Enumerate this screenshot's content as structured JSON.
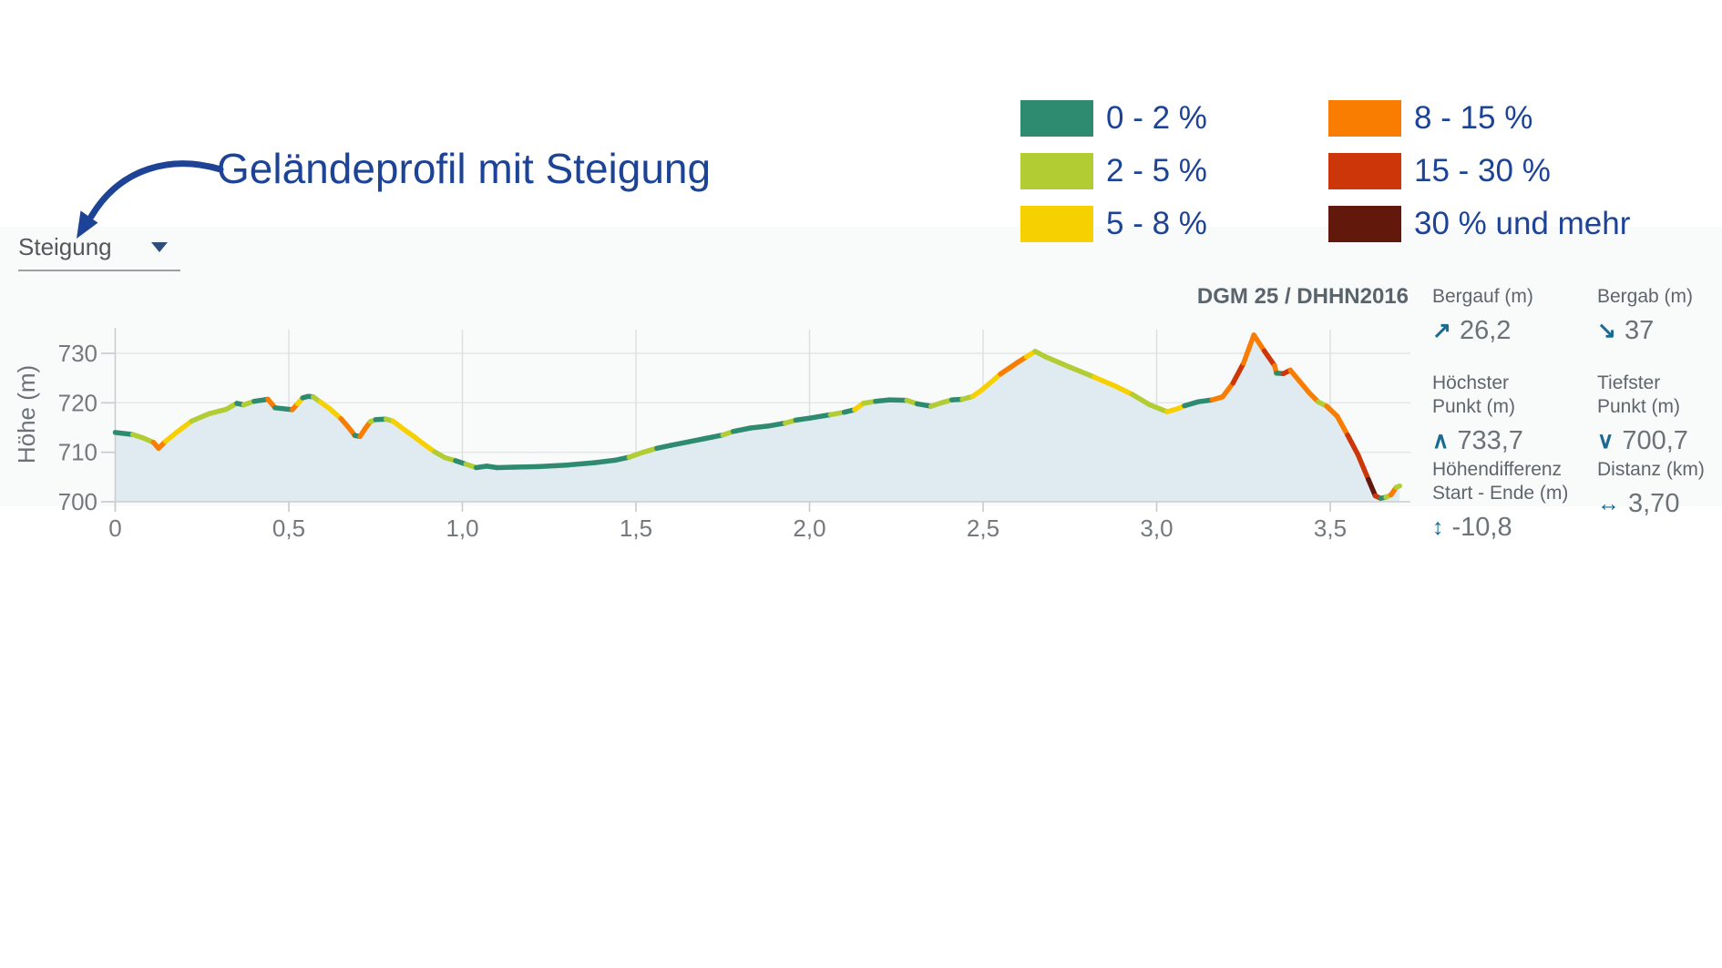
{
  "annotation": {
    "title": "Geländeprofil mit Steigung",
    "color": "#1C4396"
  },
  "controls": {
    "profile_type": {
      "value": "Steigung"
    }
  },
  "legend": {
    "items": [
      {
        "label": "0 - 2 %",
        "color": "#2E8B6F"
      },
      {
        "label": "2 - 5 %",
        "color": "#B2CC34"
      },
      {
        "label": "5 - 8 %",
        "color": "#F7D000"
      },
      {
        "label": "8 - 15 %",
        "color": "#F87D00"
      },
      {
        "label": "15 - 30 %",
        "color": "#CD3608"
      },
      {
        "label": "30 % und mehr",
        "color": "#62190B"
      }
    ]
  },
  "chart": {
    "model_label": "DGM 25 / DHHN2016",
    "ylabel": "Höhe (m)",
    "x_ticks": [
      {
        "v": 0,
        "label": "0"
      },
      {
        "v": 0.5,
        "label": "0,5"
      },
      {
        "v": 1.0,
        "label": "1,0"
      },
      {
        "v": 1.5,
        "label": "1,5"
      },
      {
        "v": 2.0,
        "label": "2,0"
      },
      {
        "v": 2.5,
        "label": "2,5"
      },
      {
        "v": 3.0,
        "label": "3,0"
      },
      {
        "v": 3.5,
        "label": "3,5"
      }
    ],
    "y_ticks": [
      {
        "v": 700,
        "label": "700"
      },
      {
        "v": 710,
        "label": "710"
      },
      {
        "v": 720,
        "label": "720"
      },
      {
        "v": 730,
        "label": "730"
      }
    ]
  },
  "chart_data": {
    "type": "area",
    "title": "Geländeprofil mit Steigung",
    "xlabel": "Distanz (km)",
    "ylabel": "Höhe (m)",
    "x_unit": "km",
    "y_unit": "m",
    "xlim": [
      0,
      3.7
    ],
    "ylim": [
      700,
      733.7
    ],
    "grid": true,
    "fill_color": "#DFEAF1",
    "x": [
      0,
      0.05,
      0.08,
      0.11,
      0.125,
      0.145,
      0.18,
      0.22,
      0.27,
      0.32,
      0.35,
      0.37,
      0.4,
      0.44,
      0.46,
      0.51,
      0.525,
      0.54,
      0.555,
      0.57,
      0.59,
      0.62,
      0.65,
      0.67,
      0.69,
      0.705,
      0.72,
      0.735,
      0.75,
      0.78,
      0.8,
      0.83,
      0.86,
      0.89,
      0.92,
      0.95,
      0.98,
      1.01,
      1.04,
      1.07,
      1.1,
      1.15,
      1.22,
      1.3,
      1.38,
      1.44,
      1.48,
      1.52,
      1.56,
      1.6,
      1.65,
      1.7,
      1.75,
      1.78,
      1.83,
      1.88,
      1.93,
      1.96,
      2.0,
      2.06,
      2.1,
      2.13,
      2.155,
      2.19,
      2.23,
      2.28,
      2.31,
      2.35,
      2.38,
      2.41,
      2.44,
      2.47,
      2.5,
      2.55,
      2.6,
      2.625,
      2.65,
      2.68,
      2.75,
      2.82,
      2.88,
      2.93,
      2.98,
      3.03,
      3.06,
      3.08,
      3.12,
      3.16,
      3.19,
      3.22,
      3.25,
      3.28,
      3.31,
      3.34,
      3.345,
      3.365,
      3.385,
      3.41,
      3.44,
      3.465,
      3.49,
      3.52,
      3.55,
      3.58,
      3.61,
      3.63,
      3.645,
      3.66,
      3.675,
      3.69,
      3.7
    ],
    "elevation": [
      714.0,
      713.6,
      712.9,
      712.0,
      710.8,
      712.2,
      714.2,
      716.3,
      717.8,
      718.7,
      719.9,
      719.6,
      720.3,
      720.7,
      719.0,
      718.6,
      719.8,
      721.0,
      721.3,
      721.2,
      720.2,
      718.7,
      716.8,
      715.2,
      713.4,
      713.2,
      714.8,
      716.2,
      716.6,
      716.7,
      716.3,
      714.7,
      713.2,
      711.6,
      710.1,
      708.9,
      708.3,
      707.6,
      706.9,
      707.2,
      706.9,
      707.0,
      707.1,
      707.4,
      707.9,
      708.4,
      709.0,
      710.0,
      710.8,
      711.4,
      712.1,
      712.8,
      713.5,
      714.2,
      714.9,
      715.3,
      715.9,
      716.5,
      716.9,
      717.6,
      718.1,
      718.6,
      719.9,
      720.3,
      720.6,
      720.5,
      719.8,
      719.3,
      720.0,
      720.6,
      720.7,
      721.3,
      722.8,
      725.8,
      728.2,
      729.3,
      730.4,
      729.3,
      727.2,
      725.2,
      723.4,
      721.7,
      719.6,
      718.2,
      718.8,
      719.4,
      720.2,
      720.6,
      721.2,
      724.0,
      728.0,
      733.7,
      730.5,
      727.5,
      726.0,
      725.9,
      726.6,
      724.5,
      722.0,
      720.2,
      719.3,
      717.3,
      713.5,
      709.5,
      704.5,
      701.2,
      700.7,
      700.9,
      701.4,
      702.9,
      703.2
    ],
    "slope_class": [
      "0-2",
      "2-5",
      "2-5",
      "8-15",
      "8-15",
      "5-8",
      "5-8",
      "2-5",
      "2-5",
      "2-5",
      "0-2",
      "2-5",
      "0-2",
      "8-15",
      "0-2",
      "8-15",
      "5-8",
      "0-2",
      "0-2",
      "2-5",
      "5-8",
      "5-8",
      "8-15",
      "8-15",
      "0-2",
      "8-15",
      "8-15",
      "2-5",
      "0-2",
      "2-5",
      "5-8",
      "5-8",
      "5-8",
      "5-8",
      "2-5",
      "2-5",
      "0-2",
      "2-5",
      "0-2",
      "0-2",
      "0-2",
      "0-2",
      "0-2",
      "0-2",
      "0-2",
      "0-2",
      "2-5",
      "2-5",
      "0-2",
      "0-2",
      "0-2",
      "0-2",
      "2-5",
      "0-2",
      "0-2",
      "0-2",
      "2-5",
      "0-2",
      "0-2",
      "2-5",
      "0-2",
      "5-8",
      "2-5",
      "0-2",
      "0-2",
      "2-5",
      "0-2",
      "2-5",
      "2-5",
      "0-2",
      "2-5",
      "5-8",
      "5-8",
      "8-15",
      "8-15",
      "5-8",
      "2-5",
      "2-5",
      "2-5",
      "5-8",
      "5-8",
      "2-5",
      "2-5",
      "5-8",
      "5-8",
      "0-2",
      "0-2",
      "8-15",
      "8-15",
      "15-30",
      "8-15",
      "8-15",
      "15-30",
      "8-15",
      "0-2",
      "15-30",
      "8-15",
      "8-15",
      "8-15",
      "2-5",
      "8-15",
      "8-15",
      "15-30",
      "15-30",
      "30+",
      "15-30",
      "0-2",
      "2-5",
      "8-15",
      "2-5"
    ],
    "class_colors": {
      "0-2": "#2E8B6F",
      "2-5": "#B2CC34",
      "5-8": "#F7D000",
      "8-15": "#F87D00",
      "15-30": "#CD3608",
      "30+": "#62190B"
    }
  },
  "stats": {
    "bergauf": {
      "label": "Bergauf (m)",
      "label2": "",
      "glyph": "↗",
      "value": "26,2"
    },
    "bergab": {
      "label": "Bergab (m)",
      "label2": "",
      "glyph": "↘",
      "value": "37"
    },
    "hoechster": {
      "label": "Höchster",
      "label2": "Punkt (m)",
      "glyph": "∧",
      "value": "733,7"
    },
    "tiefster": {
      "label": "Tiefster",
      "label2": "Punkt (m)",
      "glyph": "∨",
      "value": "700,7"
    },
    "hoehendifferenz": {
      "label": "Höhendifferenz",
      "label2": "Start - Ende (m)",
      "glyph": "↕",
      "value": "-10,8"
    },
    "distanz": {
      "label": "Distanz (km)",
      "label2": "",
      "glyph": "↔",
      "value": "3,70"
    }
  }
}
